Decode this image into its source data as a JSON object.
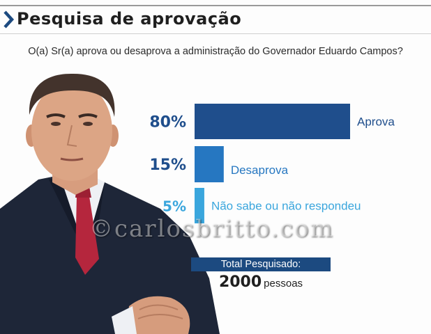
{
  "header": {
    "title": "Pesquisa de aprovação"
  },
  "question": "O(a) Sr(a) aprova ou desaprova a administração do Governador Eduardo Campos?",
  "watermark": "©carlosbritto.com",
  "total": {
    "label": "Total Pesquisado:",
    "value": "2000",
    "unit": "pessoas"
  },
  "colors": {
    "title_accent": "#1c4a80",
    "aprova": "#1f4e8c",
    "desaprova": "#2677c1",
    "nao_sabe": "#3aa6dd",
    "pct_text": "#1f4e8c"
  },
  "chart_data": {
    "type": "bar",
    "orientation": "horizontal",
    "categories": [
      "Aprova",
      "Desaprova",
      "Não sabe ou não respondeu"
    ],
    "values": [
      80,
      15,
      5
    ],
    "value_labels": [
      "80%",
      "15%",
      "5%"
    ],
    "title": "Pesquisa de aprovação"
  }
}
